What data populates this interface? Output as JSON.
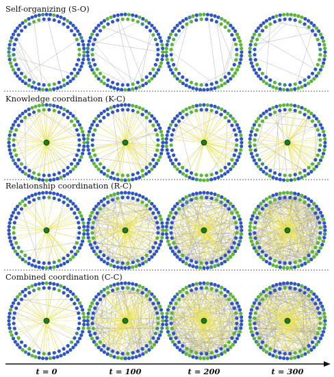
{
  "rows": [
    {
      "title": "Self-organizing  (S-O)",
      "hub": false
    },
    {
      "title": "Knowledge coordination  (K-C)",
      "hub": true
    },
    {
      "title": "Relationship coordination  (R-C)",
      "hub": true
    },
    {
      "title": "Combined coordination  (C-C)",
      "hub": true
    }
  ],
  "time_labels": [
    "t = 0",
    "t = 100",
    "t = 200",
    "t = 300"
  ],
  "colors": {
    "node_blue": "#2e55c4",
    "node_green": "#59b63a",
    "node_teal": "#3a8a8f",
    "edge_gray": "#9a9a9a",
    "edge_yellow": "#e9e25a",
    "hub": "#1e7a1e",
    "divider": "#666666",
    "axis": "#111111"
  },
  "edge_density": [
    [
      16,
      16,
      16,
      16
    ],
    [
      10,
      14,
      16,
      18
    ],
    [
      8,
      110,
      170,
      200
    ],
    [
      10,
      130,
      190,
      210
    ]
  ],
  "hub_spokes": [
    [
      0,
      0,
      0,
      0
    ],
    [
      60,
      55,
      50,
      50
    ],
    [
      40,
      120,
      140,
      160
    ],
    [
      45,
      140,
      160,
      180
    ]
  ]
}
